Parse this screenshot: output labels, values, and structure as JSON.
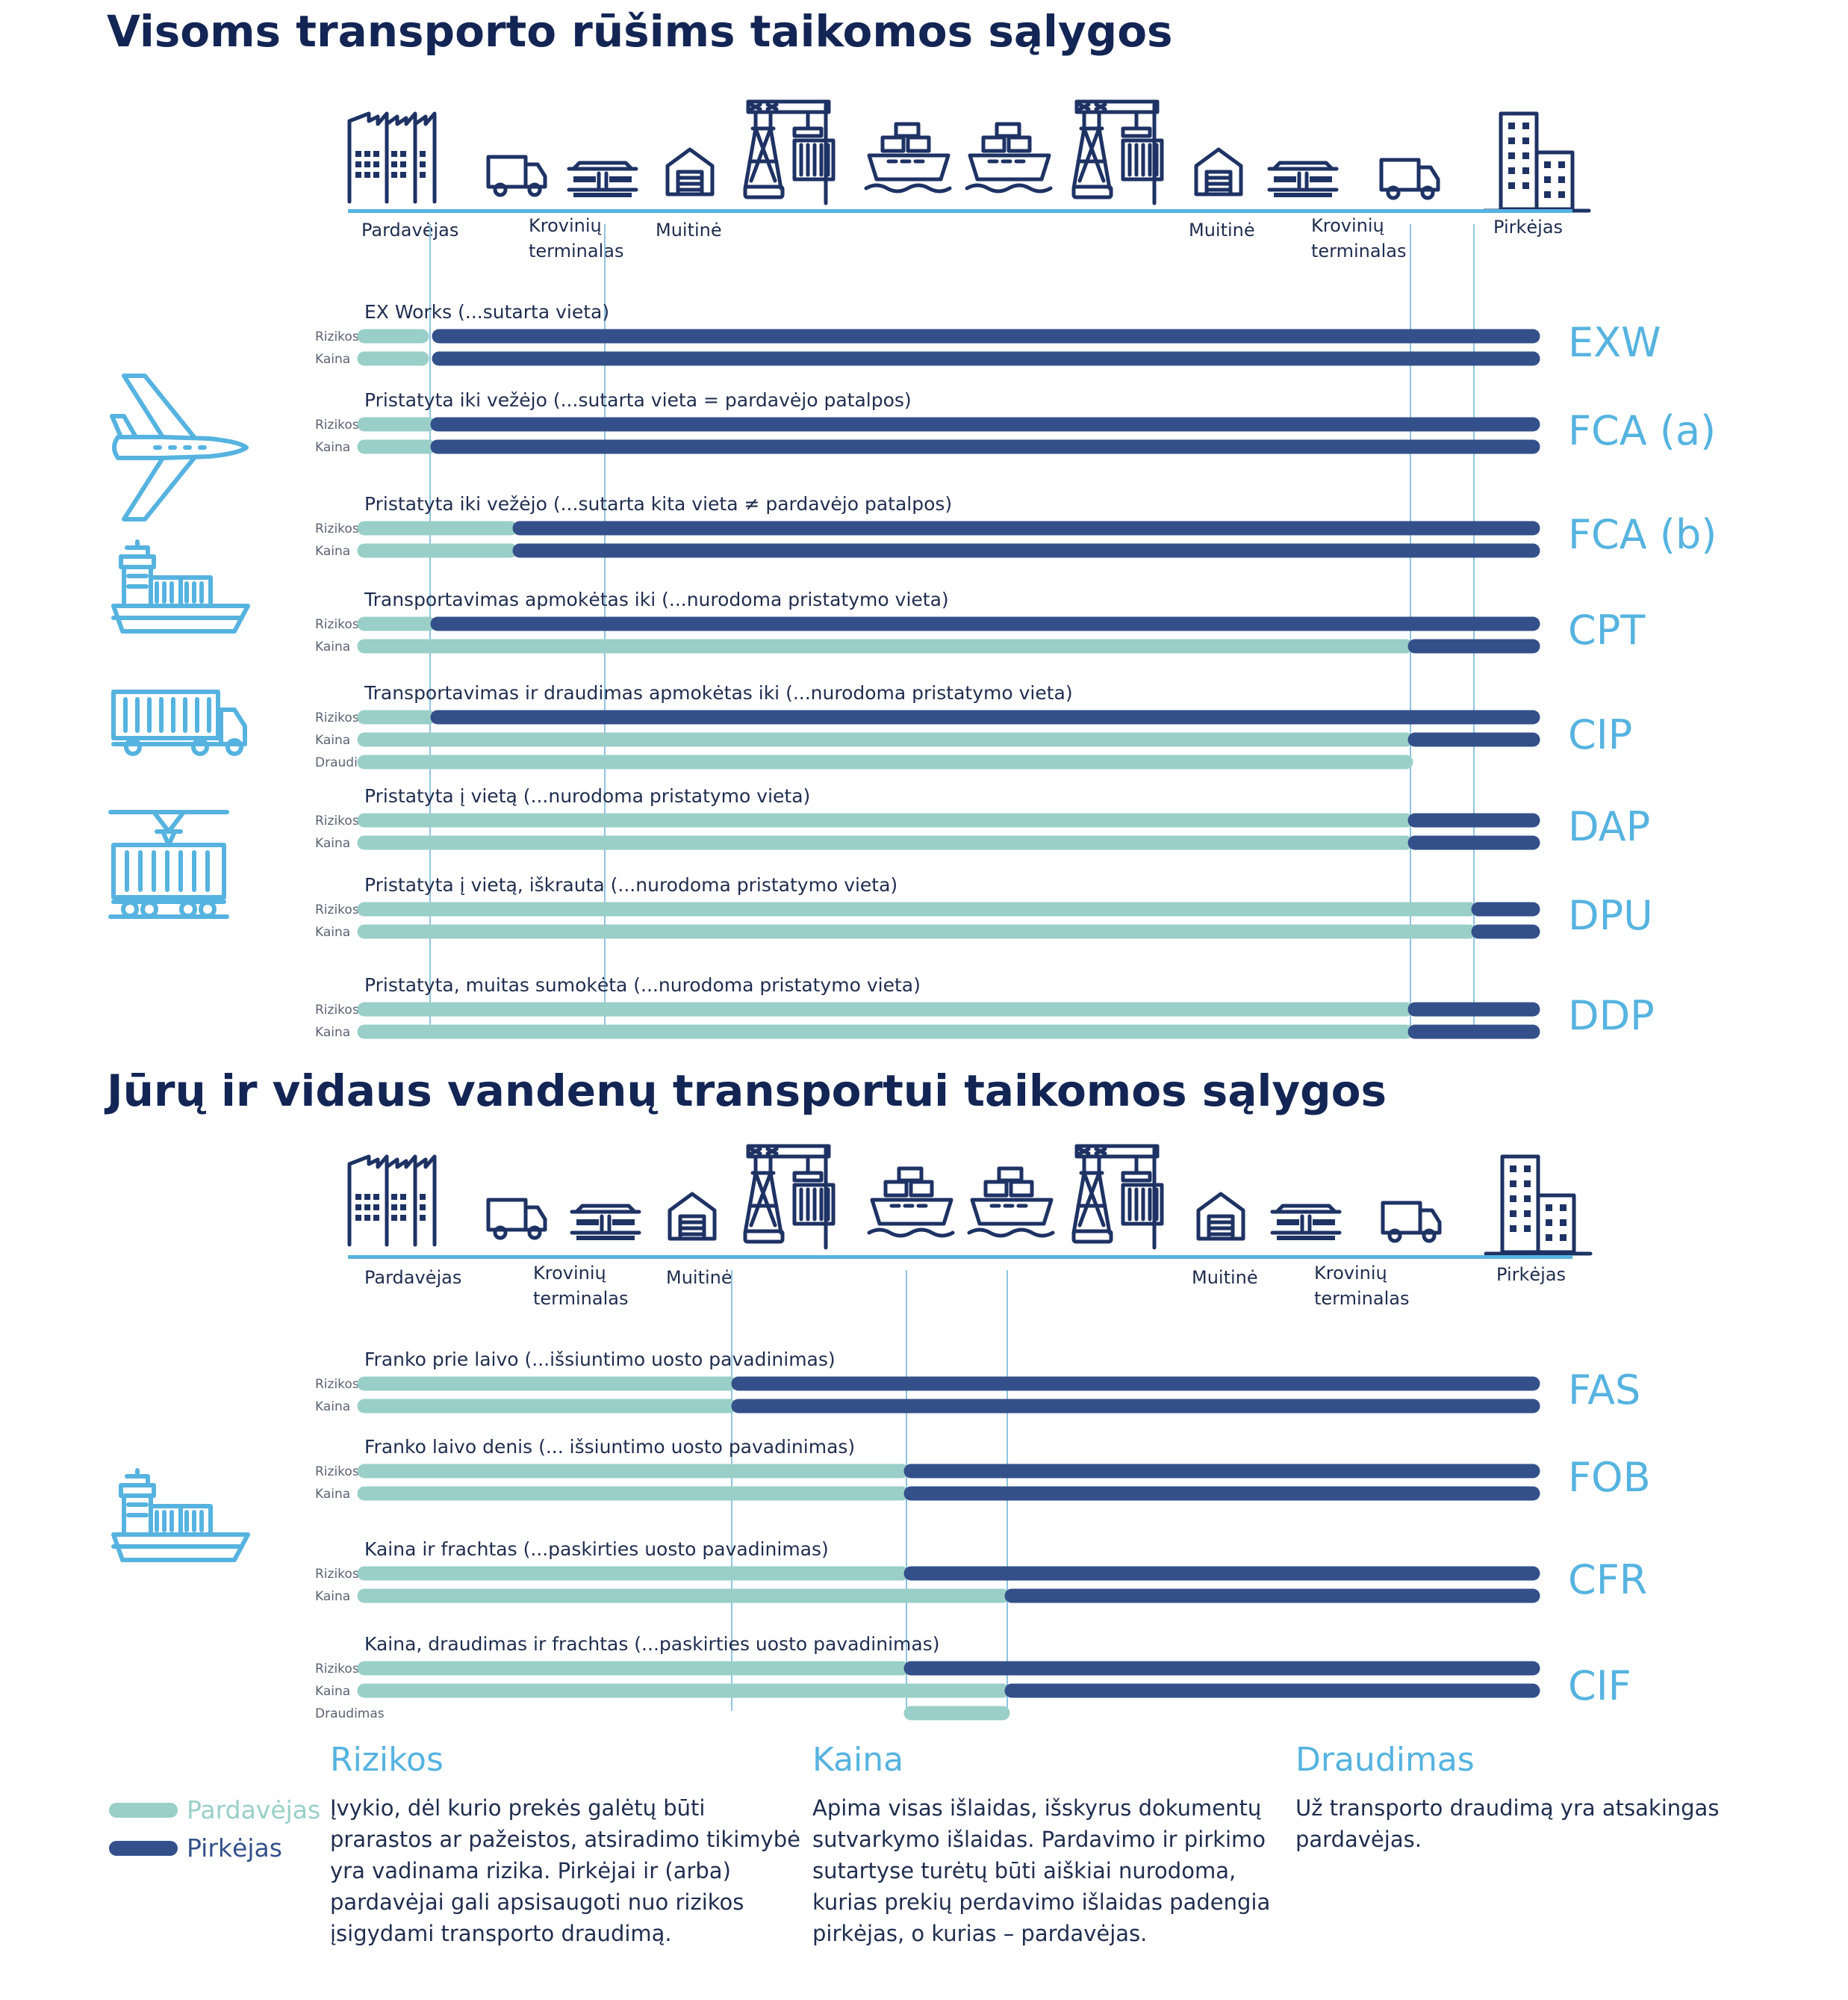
{
  "colors": {
    "seller": "#99cfc8",
    "buyer": "#33508a",
    "axis": "#56b3e0",
    "guide": "#8ec4df",
    "title": "#132554",
    "code": "#56b3e0"
  },
  "section1": {
    "title": "Visoms transporto rūšims taikomos sąlygos",
    "stations": {
      "seller": "Pardavėjas",
      "terminal1_line1": "Krovinių",
      "terminal1_line2": "terminalas",
      "customs1": "Muitinė",
      "customs2": "Muitinė",
      "terminal2_line1": "Krovinių",
      "terminal2_line2": "terminalas",
      "buyer": "Pirkėjas"
    },
    "mode_icons": [
      "airplane-icon",
      "container-ship-icon",
      "container-truck-icon",
      "train-wagon-icon"
    ],
    "rows": [
      {
        "code": "EXW",
        "title": "EX Works (...sutarta vieta)",
        "bars": [
          {
            "label": "Rizikos",
            "split": 0
          },
          {
            "label": "Kaina",
            "split": 0
          }
        ]
      },
      {
        "code": "FCA (a)",
        "title": "Pristatyta iki vežėjo (...sutarta vieta = pardavėjo patalpos)",
        "bars": [
          {
            "label": "Rizikos",
            "split": 1
          },
          {
            "label": "Kaina",
            "split": 1
          }
        ]
      },
      {
        "code": "FCA (b)",
        "title": "Pristatyta iki vežėjo (...sutarta kita vieta ≠ pardavėjo patalpos)",
        "bars": [
          {
            "label": "Rizikos",
            "split": 2
          },
          {
            "label": "Kaina",
            "split": 2
          }
        ]
      },
      {
        "code": "CPT",
        "title": "Transportavimas apmokėtas iki (...nurodoma pristatymo vieta)",
        "bars": [
          {
            "label": "Rizikos",
            "split": 1
          },
          {
            "label": "Kaina",
            "split": 5
          }
        ]
      },
      {
        "code": "CIP",
        "title": "Transportavimas ir draudimas apmokėtas iki (...nurodoma pristatymo vieta)",
        "bars": [
          {
            "label": "Rizikos",
            "split": 1
          },
          {
            "label": "Kaina",
            "split": 5
          },
          {
            "label": "Draudimas",
            "seller_only_to": 5
          }
        ]
      },
      {
        "code": "DAP",
        "title": "Pristatyta į vietą (...nurodoma pristatymo vieta)",
        "bars": [
          {
            "label": "Rizikos",
            "split": 5
          },
          {
            "label": "Kaina",
            "split": 5
          }
        ]
      },
      {
        "code": "DPU",
        "title": "Pristatyta į vietą, iškrauta (...nurodoma pristatymo vieta)",
        "bars": [
          {
            "label": "Rizikos",
            "split": 6
          },
          {
            "label": "Kaina",
            "split": 6
          }
        ]
      },
      {
        "code": "DDP",
        "title": "Pristatyta, muitas sumokėta (...nurodoma pristatymo vieta)",
        "bars": [
          {
            "label": "Rizikos",
            "split": 5
          },
          {
            "label": "Kaina",
            "split": 5
          }
        ]
      }
    ]
  },
  "section2": {
    "title": "Jūrų ir vidaus vandenų transportui taikomos sąlygos",
    "stations": {
      "seller": "Pardavėjas",
      "terminal1_line1": "Krovinių",
      "terminal1_line2": "terminalas",
      "customs1": "Muitinė",
      "customs2": "Muitinė",
      "terminal2_line1": "Krovinių",
      "terminal2_line2": "terminalas",
      "buyer": "Pirkėjas"
    },
    "mode_icons": [
      "container-ship-icon"
    ],
    "rows": [
      {
        "code": "FAS",
        "title": "Franko prie laivo (...išsiuntimo uosto pavadinimas)",
        "bars": [
          {
            "label": "Rizikos",
            "split": 3
          },
          {
            "label": "Kaina",
            "split": 3
          }
        ]
      },
      {
        "code": "FOB",
        "title": "Franko laivo denis (... išsiuntimo uosto pavadinimas)",
        "bars": [
          {
            "label": "Rizikos",
            "split": 4
          },
          {
            "label": "Kaina",
            "split": 4
          }
        ]
      },
      {
        "code": "CFR",
        "title": "Kaina ir frachtas (...paskirties uosto pavadinimas)",
        "bars": [
          {
            "label": "Rizikos",
            "split": 4
          },
          {
            "label": "Kaina",
            "split": 7
          }
        ]
      },
      {
        "code": "CIF",
        "title": "Kaina, draudimas ir frachtas (...paskirties uosto pavadinimas)",
        "bars": [
          {
            "label": "Rizikos",
            "split": 4
          },
          {
            "label": "Kaina",
            "split": 7
          },
          {
            "label": "Draudimas",
            "seller_from": 4,
            "seller_only_to": 7
          }
        ]
      }
    ]
  },
  "legend": {
    "seller": "Pardavėjas",
    "buyer": "Pirkėjas",
    "rizikos": {
      "title": "Rizikos",
      "lines": [
        "Įvykio, dėl kurio prekės galėtų būti",
        "prarastos ar pažeistos, atsiradimo tikimybė",
        "yra vadinama rizika. Pirkėjai ir (arba)",
        "pardavėjai gali apsisaugoti nuo rizikos",
        "įsigydami transporto draudimą."
      ]
    },
    "kaina": {
      "title": "Kaina",
      "lines": [
        "Apima visas išlaidas, išskyrus dokumentų",
        "sutvarkymo išlaidas. Pardavimo ir pirkimo",
        "sutartyse turėtų būti aiškiai nurodoma,",
        "kurias prekių perdavimo išlaidas padengia",
        "pirkėjas, o kurias – pardavėjas."
      ]
    },
    "draudimas": {
      "title": "Draudimas",
      "lines": [
        "Už transporto draudimą yra atsakingas",
        "pardavėjas."
      ]
    }
  }
}
